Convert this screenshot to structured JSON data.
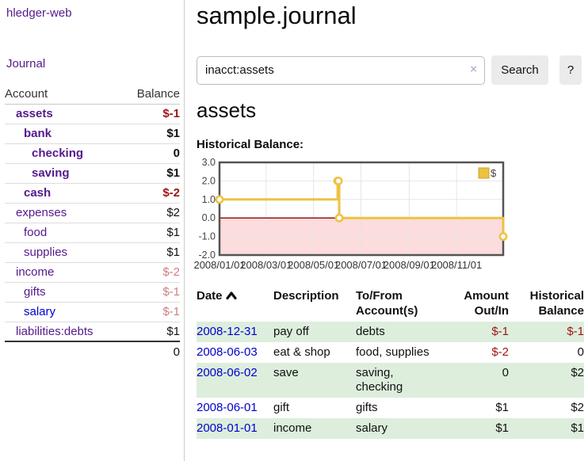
{
  "sidebar": {
    "brand": "hledger-web",
    "nav": {
      "journal": "Journal"
    },
    "table": {
      "col_account": "Account",
      "col_balance": "Balance",
      "rows": [
        {
          "name": "assets",
          "balance": "$-1",
          "level": 1,
          "name_style": "acct-bold",
          "bal_style": "bal-neg-bold"
        },
        {
          "name": "bank",
          "balance": "$1",
          "level": 2,
          "name_style": "acct-bold",
          "bal_style": "bal-bold"
        },
        {
          "name": "checking",
          "balance": "0",
          "level": 3,
          "name_style": "acct-bold",
          "bal_style": "bal-bold"
        },
        {
          "name": "saving",
          "balance": "$1",
          "level": 3,
          "name_style": "acct-bold",
          "bal_style": "bal-bold"
        },
        {
          "name": "cash",
          "balance": "$-2",
          "level": 2,
          "name_style": "acct-bold",
          "bal_style": "bal-neg-bold"
        },
        {
          "name": "expenses",
          "balance": "$2",
          "level": 1,
          "name_style": "acct",
          "bal_style": "bal"
        },
        {
          "name": "food",
          "balance": "$1",
          "level": 2,
          "name_style": "acct",
          "bal_style": "bal"
        },
        {
          "name": "supplies",
          "balance": "$1",
          "level": 2,
          "name_style": "acct",
          "bal_style": "bal"
        },
        {
          "name": "income",
          "balance": "$-2",
          "level": 1,
          "name_style": "acct",
          "bal_style": "bal-neg-faded"
        },
        {
          "name": "gifts",
          "balance": "$-1",
          "level": 2,
          "name_style": "acct",
          "bal_style": "bal-neg-faded"
        },
        {
          "name": "salary",
          "balance": "$-1",
          "level": 2,
          "name_style": "acct-blue",
          "bal_style": "bal-neg-faded"
        },
        {
          "name": "liabilities:debts",
          "balance": "$1",
          "level": 1,
          "name_style": "acct",
          "bal_style": "bal"
        }
      ],
      "total": "0"
    }
  },
  "main": {
    "title": "sample.journal",
    "search": {
      "value": "inacct:assets",
      "clear": "×",
      "button_label": "Search",
      "help_label": "?"
    },
    "account_heading": "assets",
    "chart_title": "Historical Balance:"
  },
  "chart_data": {
    "type": "line",
    "style": "step-after",
    "title": "Historical Balance",
    "series": [
      {
        "name": "$",
        "color": "#edc240",
        "points": [
          [
            "2008-01-01",
            1.0
          ],
          [
            "2008-06-01",
            2.0
          ],
          [
            "2008-06-02",
            2.0
          ],
          [
            "2008-06-03",
            0.0
          ],
          [
            "2008-12-31",
            -1.0
          ]
        ]
      }
    ],
    "x_range": [
      "2008-01-01",
      "2008-12-31"
    ],
    "ylim": [
      -2.0,
      3.0
    ],
    "y_ticks": [
      {
        "v": 3.0,
        "label": "3.0"
      },
      {
        "v": 2.0,
        "label": "2.0"
      },
      {
        "v": 1.0,
        "label": "1.0"
      },
      {
        "v": 0.0,
        "label": "0.0"
      },
      {
        "v": -1.0,
        "label": "-1.0"
      },
      {
        "v": -2.0,
        "label": "-2.0"
      }
    ],
    "x_ticks": [
      {
        "d": "2008-01-01",
        "label": "2008/01/01"
      },
      {
        "d": "2008-03-01",
        "label": "2008/03/01"
      },
      {
        "d": "2008-05-01",
        "label": "2008/05/01"
      },
      {
        "d": "2008-07-01",
        "label": "2008/07/01"
      },
      {
        "d": "2008-09-01",
        "label": "2008/09/01"
      },
      {
        "d": "2008-11-01",
        "label": "2008/11/01"
      }
    ],
    "legend": {
      "label": "$",
      "position": "top-right"
    },
    "grid": true,
    "colors": {
      "negative_region": "#fcdcdc",
      "zero_line": "#8b0000",
      "border": "#545454",
      "gridline": "#e6e6e6"
    }
  },
  "register": {
    "headers": [
      {
        "line1": "Date",
        "line2": "",
        "align": "left",
        "sort": "asc"
      },
      {
        "line1": "Description",
        "line2": "",
        "align": "left"
      },
      {
        "line1": "To/From",
        "line2": "Account(s)",
        "align": "left"
      },
      {
        "line1": "Amount",
        "line2": "Out/In",
        "align": "right"
      },
      {
        "line1": "Historical",
        "line2": "Balance",
        "align": "right"
      }
    ],
    "rows": [
      {
        "date": "2008-12-31",
        "description": "pay off",
        "account_lines": [
          "debts"
        ],
        "amount": "$-1",
        "amount_neg": true,
        "balance": "$-1",
        "balance_neg": true
      },
      {
        "date": "2008-06-03",
        "description": "eat & shop",
        "account_lines": [
          "food, supplies"
        ],
        "amount": "$-2",
        "amount_neg": true,
        "balance": "0",
        "balance_neg": false
      },
      {
        "date": "2008-06-02",
        "description": "save",
        "account_lines": [
          "saving,",
          "checking"
        ],
        "amount": "0",
        "amount_neg": false,
        "balance": "$2",
        "balance_neg": false
      },
      {
        "date": "2008-06-01",
        "description": "gift",
        "account_lines": [
          "gifts"
        ],
        "amount": "$1",
        "amount_neg": false,
        "balance": "$2",
        "balance_neg": false
      },
      {
        "date": "2008-01-01",
        "description": "income",
        "account_lines": [
          "salary"
        ],
        "amount": "$1",
        "amount_neg": false,
        "balance": "$1",
        "balance_neg": false
      }
    ]
  }
}
